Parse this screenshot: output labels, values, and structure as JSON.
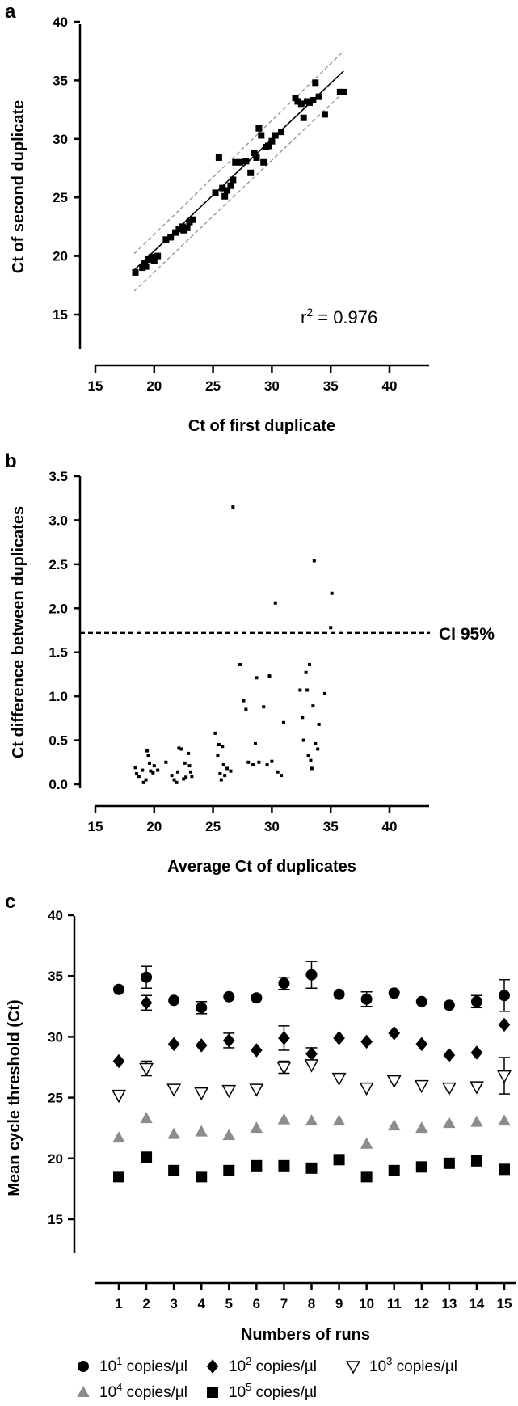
{
  "chart_data": [
    {
      "panel": "a",
      "type": "scatter",
      "xlabel": "Ct of first duplicate",
      "ylabel": "Ct of second duplicate",
      "xlim": [
        15,
        40
      ],
      "ylim": [
        15,
        40
      ],
      "xticks": [
        15,
        20,
        25,
        30,
        35,
        40
      ],
      "yticks": [
        15,
        20,
        25,
        30,
        35,
        40
      ],
      "annotation": {
        "prefix": "r",
        "sup": "2",
        "suffix": " = 0.976"
      },
      "fit_line": {
        "x": [
          18.3,
          36.1
        ],
        "y": [
          18.8,
          35.8
        ]
      },
      "band_upper": {
        "x": [
          18.3,
          36.1
        ],
        "y": [
          20.2,
          37.5
        ]
      },
      "band_lower": {
        "x": [
          18.3,
          36.1
        ],
        "y": [
          17.0,
          34.0
        ]
      },
      "points": [
        [
          18.4,
          18.6
        ],
        [
          19.0,
          19.0
        ],
        [
          19.2,
          19.4
        ],
        [
          19.3,
          19.1
        ],
        [
          19.5,
          19.7
        ],
        [
          19.8,
          19.9
        ],
        [
          20.0,
          19.6
        ],
        [
          20.3,
          20.0
        ],
        [
          21.0,
          21.4
        ],
        [
          21.4,
          21.6
        ],
        [
          21.8,
          22.0
        ],
        [
          22.1,
          22.3
        ],
        [
          22.4,
          22.5
        ],
        [
          22.8,
          22.4
        ],
        [
          23.0,
          22.9
        ],
        [
          23.3,
          23.1
        ],
        [
          22.5,
          22.2
        ],
        [
          25.2,
          25.4
        ],
        [
          25.5,
          28.4
        ],
        [
          25.8,
          25.8
        ],
        [
          26.0,
          25.1
        ],
        [
          26.2,
          25.6
        ],
        [
          26.5,
          26.0
        ],
        [
          26.7,
          26.5
        ],
        [
          26.9,
          28.0
        ],
        [
          27.3,
          28.0
        ],
        [
          27.8,
          28.1
        ],
        [
          28.2,
          27.1
        ],
        [
          28.5,
          28.8
        ],
        [
          28.7,
          28.4
        ],
        [
          28.9,
          30.9
        ],
        [
          29.1,
          30.3
        ],
        [
          29.3,
          28.0
        ],
        [
          29.5,
          29.3
        ],
        [
          29.7,
          29.4
        ],
        [
          30.0,
          29.8
        ],
        [
          30.3,
          30.3
        ],
        [
          30.8,
          30.6
        ],
        [
          32.0,
          33.5
        ],
        [
          32.2,
          33.2
        ],
        [
          32.5,
          33.0
        ],
        [
          32.7,
          31.8
        ],
        [
          33.0,
          33.2
        ],
        [
          33.2,
          33.1
        ],
        [
          33.5,
          33.3
        ],
        [
          33.7,
          34.8
        ],
        [
          34.0,
          33.6
        ],
        [
          34.5,
          32.1
        ],
        [
          35.8,
          34.0
        ],
        [
          36.1,
          34.0
        ]
      ]
    },
    {
      "panel": "b",
      "type": "scatter",
      "xlabel": "Average Ct of duplicates",
      "ylabel": "Ct difference between duplicates",
      "xlim": [
        15,
        40
      ],
      "ylim": [
        0,
        3.5
      ],
      "xticks": [
        15,
        20,
        25,
        30,
        35,
        40
      ],
      "yticks": [
        0.0,
        0.5,
        1.0,
        1.5,
        2.0,
        2.5,
        3.0,
        3.5
      ],
      "ci_line": {
        "y": 1.72,
        "label": "CI 95%"
      },
      "points": [
        [
          18.4,
          0.19
        ],
        [
          18.5,
          0.12
        ],
        [
          18.7,
          0.09
        ],
        [
          19.0,
          0.16
        ],
        [
          19.1,
          0.02
        ],
        [
          19.3,
          0.05
        ],
        [
          19.4,
          0.38
        ],
        [
          19.5,
          0.33
        ],
        [
          19.6,
          0.24
        ],
        [
          19.7,
          0.15
        ],
        [
          19.9,
          0.13
        ],
        [
          20.0,
          0.21
        ],
        [
          20.3,
          0.16
        ],
        [
          21.0,
          0.25
        ],
        [
          21.5,
          0.1
        ],
        [
          21.7,
          0.05
        ],
        [
          21.9,
          0.02
        ],
        [
          22.0,
          0.14
        ],
        [
          22.1,
          0.41
        ],
        [
          22.3,
          0.4
        ],
        [
          22.5,
          0.06
        ],
        [
          22.6,
          0.24
        ],
        [
          22.7,
          0.08
        ],
        [
          22.9,
          0.35
        ],
        [
          23.0,
          0.21
        ],
        [
          23.1,
          0.14
        ],
        [
          23.2,
          0.09
        ],
        [
          25.2,
          0.58
        ],
        [
          25.4,
          0.33
        ],
        [
          25.5,
          0.45
        ],
        [
          25.6,
          0.12
        ],
        [
          25.7,
          0.05
        ],
        [
          25.8,
          0.43
        ],
        [
          25.9,
          0.22
        ],
        [
          26.0,
          0.1
        ],
        [
          26.2,
          0.18
        ],
        [
          26.5,
          0.15
        ],
        [
          26.7,
          3.15
        ],
        [
          27.3,
          1.36
        ],
        [
          27.6,
          0.95
        ],
        [
          27.8,
          0.85
        ],
        [
          28.0,
          0.25
        ],
        [
          28.4,
          0.22
        ],
        [
          28.6,
          0.46
        ],
        [
          28.7,
          1.21
        ],
        [
          28.9,
          0.25
        ],
        [
          29.3,
          0.88
        ],
        [
          29.6,
          0.22
        ],
        [
          29.8,
          1.23
        ],
        [
          30.0,
          0.26
        ],
        [
          30.3,
          2.06
        ],
        [
          30.5,
          0.14
        ],
        [
          30.8,
          0.1
        ],
        [
          31.0,
          0.7
        ],
        [
          32.4,
          1.07
        ],
        [
          32.6,
          0.76
        ],
        [
          32.7,
          0.5
        ],
        [
          32.9,
          1.27
        ],
        [
          33.0,
          1.07
        ],
        [
          33.1,
          0.33
        ],
        [
          33.2,
          1.36
        ],
        [
          33.3,
          0.27
        ],
        [
          33.4,
          0.18
        ],
        [
          33.5,
          0.89
        ],
        [
          33.6,
          2.54
        ],
        [
          33.7,
          0.46
        ],
        [
          33.9,
          0.4
        ],
        [
          34.0,
          0.68
        ],
        [
          34.5,
          1.03
        ],
        [
          35.0,
          1.78
        ],
        [
          35.1,
          2.17
        ]
      ]
    },
    {
      "panel": "c",
      "type": "scatter",
      "xlabel": "Numbers of runs",
      "ylabel": "Mean cycle threshold (Ct)",
      "ylim": [
        15,
        40
      ],
      "yticks": [
        15,
        20,
        25,
        30,
        35,
        40
      ],
      "categories": [
        "1",
        "2",
        "3",
        "4",
        "5",
        "6",
        "7",
        "8",
        "9",
        "10",
        "11",
        "12",
        "13",
        "14",
        "15"
      ],
      "series": [
        {
          "name_base": "10",
          "name_exp": "1",
          "name_unit": " copies/µl",
          "marker": "circle",
          "color": "#000000",
          "values": [
            33.9,
            34.9,
            33.0,
            32.4,
            33.3,
            33.2,
            34.4,
            35.1,
            33.5,
            33.1,
            33.6,
            32.9,
            32.6,
            32.9,
            33.4
          ],
          "errors": [
            0,
            0.9,
            0,
            0.5,
            0,
            0,
            0.5,
            1.1,
            0,
            0.6,
            0,
            0,
            0,
            0.5,
            1.3
          ]
        },
        {
          "name_base": "10",
          "name_exp": "2",
          "name_unit": " copies/µl",
          "marker": "diamond",
          "color": "#000000",
          "values": [
            28.0,
            32.8,
            29.4,
            29.3,
            29.7,
            28.9,
            29.9,
            28.6,
            29.9,
            29.6,
            30.3,
            29.4,
            28.5,
            28.7,
            31.0
          ],
          "errors": [
            0,
            0.6,
            0,
            0,
            0.6,
            0,
            1.0,
            0.5,
            0,
            0,
            0,
            0,
            0,
            0,
            0
          ]
        },
        {
          "name_base": "10",
          "name_exp": "3",
          "name_unit": " copies/µl",
          "marker": "triangle-down",
          "color": "#000000",
          "values": [
            25.2,
            27.4,
            25.7,
            25.4,
            25.6,
            25.7,
            27.5,
            27.7,
            26.6,
            25.8,
            26.4,
            26.0,
            25.8,
            25.9,
            26.8
          ],
          "errors": [
            0,
            0.6,
            0,
            0,
            0,
            0,
            0.5,
            0,
            0,
            0,
            0,
            0,
            0,
            0,
            1.5
          ]
        },
        {
          "name_base": "10",
          "name_exp": "4",
          "name_unit": " copies/µl",
          "marker": "triangle-up",
          "color": "#8c8c8c",
          "values": [
            21.7,
            23.3,
            22.0,
            22.2,
            21.9,
            22.5,
            23.2,
            23.1,
            23.1,
            21.2,
            22.7,
            22.5,
            22.9,
            23.0,
            23.1
          ],
          "errors": [
            0,
            0,
            0,
            0,
            0,
            0,
            0,
            0,
            0,
            0,
            0,
            0,
            0,
            0,
            0
          ]
        },
        {
          "name_base": "10",
          "name_exp": "5",
          "name_unit": " copies/µl",
          "marker": "square",
          "color": "#000000",
          "values": [
            18.5,
            20.1,
            19.0,
            18.5,
            19.0,
            19.4,
            19.4,
            19.2,
            19.9,
            18.5,
            19.0,
            19.3,
            19.6,
            19.8,
            19.1
          ],
          "errors": [
            0,
            0,
            0,
            0,
            0,
            0,
            0,
            0,
            0,
            0,
            0,
            0,
            0,
            0,
            0
          ]
        }
      ]
    }
  ],
  "labels": {
    "a": "a",
    "b": "b",
    "c": "c"
  }
}
